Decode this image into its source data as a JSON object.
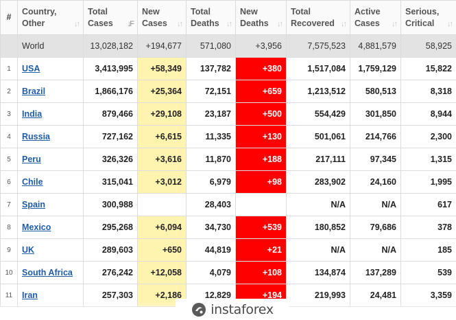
{
  "headers": [
    {
      "label": "#"
    },
    {
      "label": "Country, Other"
    },
    {
      "label": "Total Cases"
    },
    {
      "label": "New Cases"
    },
    {
      "label": "Total Deaths"
    },
    {
      "label": "New Deaths"
    },
    {
      "label": "Total Recovered"
    },
    {
      "label": "Active Cases"
    },
    {
      "label": "Serious, Critical"
    }
  ],
  "world": {
    "country": "World",
    "total_cases": "13,028,182",
    "new_cases": "+194,677",
    "total_deaths": "571,080",
    "new_deaths": "+3,956",
    "total_recovered": "7,575,523",
    "active_cases": "4,881,579",
    "serious": "58,925"
  },
  "rows": [
    {
      "num": "1",
      "country": "USA",
      "total_cases": "3,413,995",
      "new_cases": "+58,349",
      "total_deaths": "137,782",
      "new_deaths": "+380",
      "total_recovered": "1,517,084",
      "active_cases": "1,759,129",
      "serious": "15,822"
    },
    {
      "num": "2",
      "country": "Brazil",
      "total_cases": "1,866,176",
      "new_cases": "+25,364",
      "total_deaths": "72,151",
      "new_deaths": "+659",
      "total_recovered": "1,213,512",
      "active_cases": "580,513",
      "serious": "8,318"
    },
    {
      "num": "3",
      "country": "India",
      "total_cases": "879,466",
      "new_cases": "+29,108",
      "total_deaths": "23,187",
      "new_deaths": "+500",
      "total_recovered": "554,429",
      "active_cases": "301,850",
      "serious": "8,944"
    },
    {
      "num": "4",
      "country": "Russia",
      "total_cases": "727,162",
      "new_cases": "+6,615",
      "total_deaths": "11,335",
      "new_deaths": "+130",
      "total_recovered": "501,061",
      "active_cases": "214,766",
      "serious": "2,300"
    },
    {
      "num": "5",
      "country": "Peru",
      "total_cases": "326,326",
      "new_cases": "+3,616",
      "total_deaths": "11,870",
      "new_deaths": "+188",
      "total_recovered": "217,111",
      "active_cases": "97,345",
      "serious": "1,315"
    },
    {
      "num": "6",
      "country": "Chile",
      "total_cases": "315,041",
      "new_cases": "+3,012",
      "total_deaths": "6,979",
      "new_deaths": "+98",
      "total_recovered": "283,902",
      "active_cases": "24,160",
      "serious": "1,995"
    },
    {
      "num": "7",
      "country": "Spain",
      "total_cases": "300,988",
      "new_cases": "",
      "total_deaths": "28,403",
      "new_deaths": "",
      "total_recovered": "N/A",
      "active_cases": "N/A",
      "serious": "617"
    },
    {
      "num": "8",
      "country": "Mexico",
      "total_cases": "295,268",
      "new_cases": "+6,094",
      "total_deaths": "34,730",
      "new_deaths": "+539",
      "total_recovered": "180,852",
      "active_cases": "79,686",
      "serious": "378"
    },
    {
      "num": "9",
      "country": "UK",
      "total_cases": "289,603",
      "new_cases": "+650",
      "total_deaths": "44,819",
      "new_deaths": "+21",
      "total_recovered": "N/A",
      "active_cases": "N/A",
      "serious": "185"
    },
    {
      "num": "10",
      "country": "South Africa",
      "total_cases": "276,242",
      "new_cases": "+12,058",
      "total_deaths": "4,079",
      "new_deaths": "+108",
      "total_recovered": "134,874",
      "active_cases": "137,289",
      "serious": "539"
    },
    {
      "num": "11",
      "country": "Iran",
      "total_cases": "257,303",
      "new_cases": "+2,186",
      "total_deaths": "12,829",
      "new_deaths": "+194",
      "total_recovered": "219,993",
      "active_cases": "24,481",
      "serious": "3,359"
    }
  ],
  "watermark": {
    "text": "instaforex",
    "icon": "instaforex-logo-icon"
  },
  "colors": {
    "new_cases_highlight": "#fff3b0",
    "new_deaths_highlight": "#ff0000",
    "link": "#1f5da6",
    "world_row": "#e3e3e3"
  }
}
